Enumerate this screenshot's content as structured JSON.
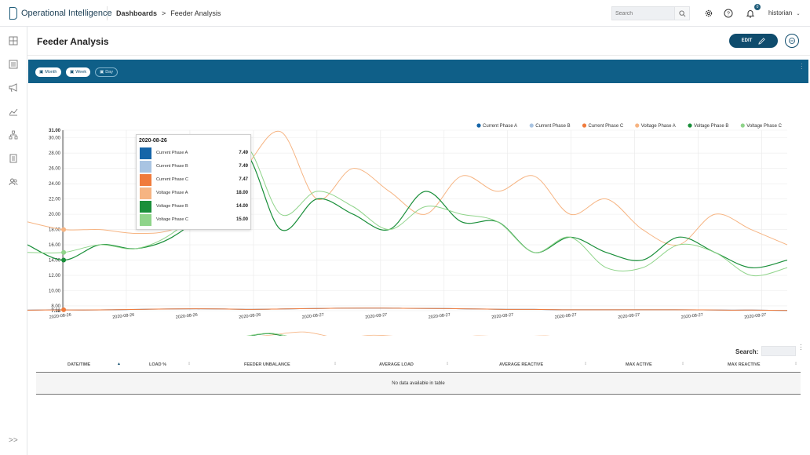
{
  "app": {
    "name": "Operational Intelligence"
  },
  "breadcrumb": {
    "root": "Dashboards",
    "separator": ">",
    "current": "Feeder Analysis"
  },
  "topbar": {
    "search_placeholder": "Search",
    "notification_count": "0",
    "user": "historian",
    "icons": [
      "search-icon",
      "gear-icon",
      "help-icon",
      "bell-icon",
      "chevron-down-icon"
    ]
  },
  "sidebar": {
    "items": [
      "dashboard-icon",
      "list-icon",
      "megaphone-icon",
      "trend-icon",
      "hierarchy-icon",
      "report-icon",
      "users-icon"
    ],
    "expand_label": ">>"
  },
  "page": {
    "title": "Feeder Analysis",
    "edit_label": "EDIT"
  },
  "range_buttons": [
    {
      "label": "Month",
      "active": true
    },
    {
      "label": "Week",
      "active": true
    },
    {
      "label": "Day",
      "active": false
    }
  ],
  "colors": {
    "current_a": "#1565a8",
    "current_b": "#a9c4e2",
    "current_c": "#f07b3c",
    "voltage_a": "#f6b482",
    "voltage_b": "#1a8f3a",
    "voltage_c": "#8fd48a",
    "bar": "#0f5f88",
    "accent": "#0f4c6d"
  },
  "chart_data": {
    "type": "line",
    "legend_position": "top-right",
    "grid": true,
    "y_ticks": [
      "31.00",
      "30.00",
      "28.00",
      "26.00",
      "24.00",
      "22.00",
      "20.00",
      "18.00",
      "16.00",
      "14.00",
      "12.00",
      "10.00",
      "8.00",
      "7.38"
    ],
    "ylim": [
      7.38,
      31.0
    ],
    "x_tick_labels": [
      "2020-08-26",
      "2020-08-26",
      "2020-08-26",
      "2020-08-26",
      "2020-08-27",
      "2020-08-27",
      "2020-08-27",
      "2020-08-27",
      "2020-08-27",
      "2020-08-27",
      "2020-08-27",
      "2020-08-27"
    ],
    "series": [
      {
        "name": "Current Phase A",
        "values": [
          7.45,
          7.49,
          7.47,
          7.5,
          7.55,
          7.6,
          7.62,
          7.6,
          7.55,
          7.6,
          7.65,
          7.7,
          7.72,
          7.7,
          7.68,
          7.65,
          7.6,
          7.55,
          7.55,
          7.5,
          7.5,
          7.5,
          7.5,
          7.5,
          7.48,
          7.45,
          7.45,
          7.4
        ]
      },
      {
        "name": "Current Phase B",
        "values": [
          7.45,
          7.49,
          7.47,
          7.5,
          7.55,
          7.6,
          7.62,
          7.6,
          7.55,
          7.6,
          7.65,
          7.7,
          7.72,
          7.7,
          7.68,
          7.65,
          7.6,
          7.55,
          7.55,
          7.5,
          7.5,
          7.5,
          7.5,
          7.5,
          7.48,
          7.45,
          7.45,
          7.4
        ]
      },
      {
        "name": "Current Phase C",
        "values": [
          7.45,
          7.47,
          7.47,
          7.5,
          7.55,
          7.6,
          7.62,
          7.6,
          7.55,
          7.6,
          7.65,
          7.7,
          7.72,
          7.7,
          7.68,
          7.65,
          7.6,
          7.55,
          7.55,
          7.5,
          7.5,
          7.5,
          7.5,
          7.5,
          7.48,
          7.45,
          7.45,
          7.4
        ]
      },
      {
        "name": "Voltage Phase A",
        "values": [
          19,
          18,
          18,
          17.5,
          18,
          21,
          26,
          30.8,
          22,
          26,
          23,
          20,
          25,
          23,
          25,
          20,
          22,
          18,
          16,
          20,
          18,
          16
        ]
      },
      {
        "name": "Voltage Phase B",
        "values": [
          16,
          14,
          16,
          15.5,
          17,
          21,
          28,
          18,
          22,
          20,
          18,
          23,
          19,
          19,
          15,
          17,
          15,
          14,
          17,
          15,
          13,
          14
        ]
      },
      {
        "name": "Voltage Phase C",
        "values": [
          15,
          15,
          16,
          15.5,
          17.5,
          22,
          29,
          20,
          23,
          21,
          18,
          21,
          20,
          19,
          15,
          17,
          13,
          13,
          16,
          15,
          12,
          13
        ]
      }
    ]
  },
  "tooltip": {
    "date": "2020-08-26",
    "rows": [
      {
        "name": "Current Phase A",
        "value": "7.49"
      },
      {
        "name": "Current Phase B",
        "value": "7.49"
      },
      {
        "name": "Current Phase C",
        "value": "7.47"
      },
      {
        "name": "Voltage Phase A",
        "value": "18.00"
      },
      {
        "name": "Voltage Phase B",
        "value": "14.00"
      },
      {
        "name": "Voltage Phase C",
        "value": "15.00"
      }
    ]
  },
  "table": {
    "search_label": "Search:",
    "columns": [
      "DATE/TIME",
      "LOAD %",
      "FEEDER UNBALANCE",
      "AVERAGE LOAD",
      "AVERAGE REACTIVE",
      "MAX ACTIVE",
      "MAX REACTIVE"
    ],
    "empty_message": "No data available in table"
  }
}
